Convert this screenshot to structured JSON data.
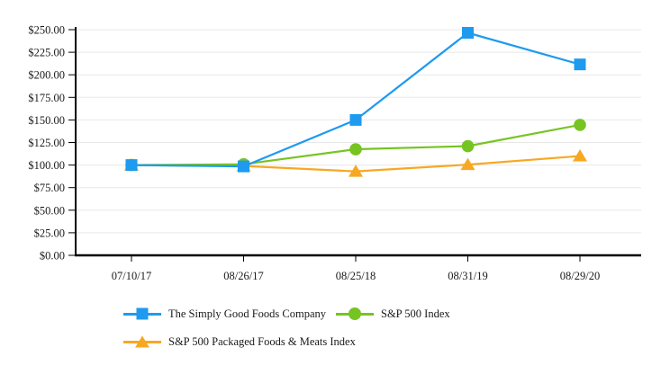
{
  "chart_data": {
    "type": "line",
    "title": "",
    "categories": [
      "07/10/17",
      "08/26/17",
      "08/25/18",
      "08/31/19",
      "08/29/20"
    ],
    "series": [
      {
        "name": "The Simply Good Foods Company",
        "marker": "square",
        "color": "#1E9AEF",
        "values": [
          100.0,
          98.5,
          150.0,
          246.5,
          211.5
        ]
      },
      {
        "name": "S&P 500 Index",
        "marker": "circle",
        "color": "#76C422",
        "values": [
          100.0,
          100.9,
          117.5,
          121.0,
          144.5
        ]
      },
      {
        "name": "S&P 500 Packaged Foods & Meats Index",
        "marker": "triangle",
        "color": "#F7A823",
        "values": [
          100.0,
          99.0,
          93.0,
          100.5,
          110.0
        ]
      }
    ],
    "y_axis": {
      "min": 0,
      "max": 250,
      "step": 25,
      "tick_labels": [
        "$0.00",
        "$25.00",
        "$50.00",
        "$75.00",
        "$100.00",
        "$125.00",
        "$150.00",
        "$175.00",
        "$200.00",
        "$225.00",
        "$250.00"
      ]
    },
    "x_axis": {
      "tick_labels": [
        "07/10/17",
        "08/26/17",
        "08/25/18",
        "08/31/19",
        "08/29/20"
      ]
    },
    "grid": true,
    "legend_position": "bottom",
    "axis_color": "#000000",
    "grid_color": "#E8E8E8"
  }
}
